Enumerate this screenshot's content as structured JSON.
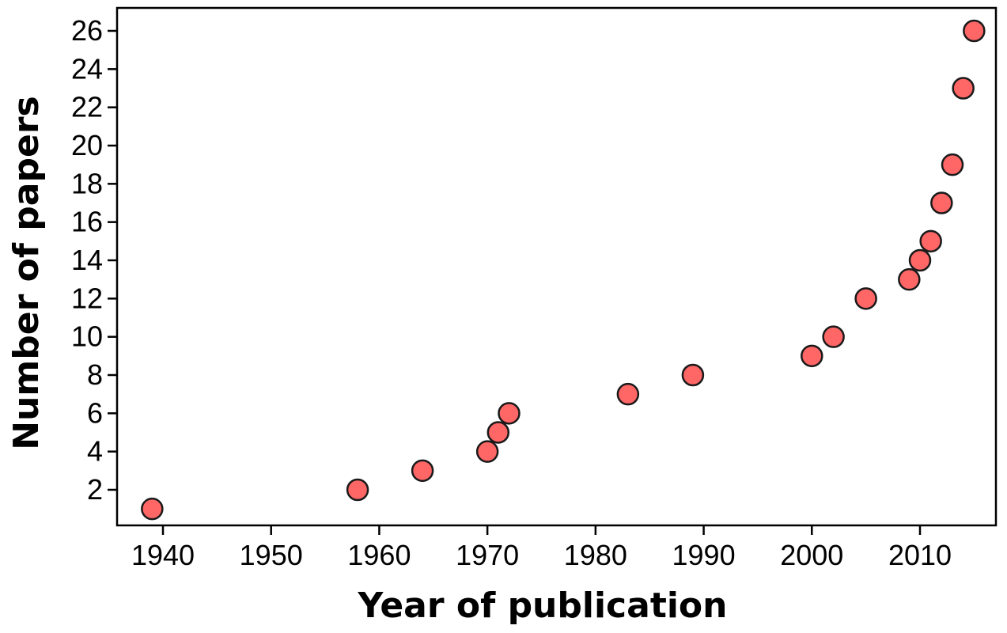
{
  "chart_data": {
    "type": "scatter",
    "title": "",
    "xlabel": "Year of publication",
    "ylabel": "Number of papers",
    "xlim": [
      1937,
      1517
    ],
    "ylim": [
      0,
      27
    ],
    "xticks": [
      1940,
      1950,
      1960,
      1970,
      1980,
      1990,
      2000,
      2010
    ],
    "yticks": [
      2,
      4,
      6,
      8,
      10,
      12,
      14,
      16,
      18,
      20,
      22,
      24,
      26
    ],
    "grid": false,
    "legend": "none",
    "marker_color": "#ff6666",
    "marker_edge_color": "#1a1a1a",
    "points": [
      {
        "x": 1939,
        "y": 1
      },
      {
        "x": 1958,
        "y": 2
      },
      {
        "x": 1964,
        "y": 3
      },
      {
        "x": 1970,
        "y": 4
      },
      {
        "x": 1971,
        "y": 5
      },
      {
        "x": 1972,
        "y": 6
      },
      {
        "x": 1983,
        "y": 7
      },
      {
        "x": 1989,
        "y": 8
      },
      {
        "x": 2000,
        "y": 9
      },
      {
        "x": 2002,
        "y": 10
      },
      {
        "x": 2005,
        "y": 12
      },
      {
        "x": 2009,
        "y": 13
      },
      {
        "x": 2010,
        "y": 14
      },
      {
        "x": 2011,
        "y": 15
      },
      {
        "x": 2012,
        "y": 17
      },
      {
        "x": 2013,
        "y": 19
      },
      {
        "x": 2014,
        "y": 23
      },
      {
        "x": 2015,
        "y": 26
      }
    ]
  }
}
